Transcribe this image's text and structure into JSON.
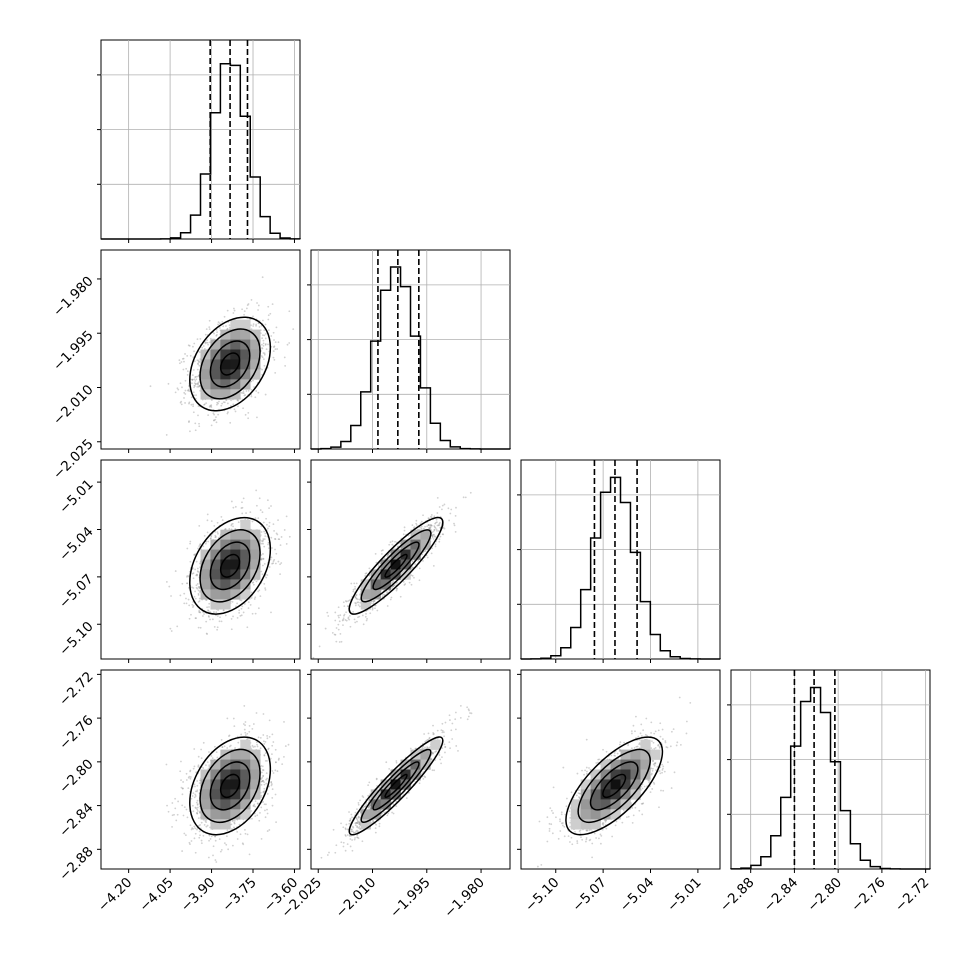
{
  "chart_data": {
    "type": "corner",
    "variables": [
      {
        "ticks": [
          "−4.20",
          "−4.05",
          "−3.90",
          "−3.75",
          "−3.60"
        ],
        "tick_values": [
          -4.2,
          -4.05,
          -3.9,
          -3.75,
          -3.6
        ],
        "range": [
          -4.3,
          -3.58
        ],
        "quantiles": [
          -3.905,
          -3.833,
          -3.77
        ],
        "mode": -3.833,
        "sd": 0.062
      },
      {
        "ticks": [
          "−2.025",
          "−2.010",
          "−1.995",
          "−1.980"
        ],
        "tick_values": [
          -2.025,
          -2.01,
          -1.995,
          -1.98
        ],
        "range": [
          -2.027,
          -1.972
        ],
        "quantiles": [
          -2.0085,
          -2.003,
          -1.9972
        ],
        "mode": -2.0035,
        "sd": 0.0055
      },
      {
        "ticks": [
          "−5.10",
          "−5.07",
          "−5.04",
          "−5.01"
        ],
        "tick_values": [
          -5.1,
          -5.07,
          -5.04,
          -5.01
        ],
        "range": [
          -5.122,
          -4.996
        ],
        "quantiles": [
          -5.0755,
          -5.0625,
          -5.0485
        ],
        "mode": -5.063,
        "sd": 0.013
      },
      {
        "ticks": [
          "−2.88",
          "−2.84",
          "−2.80",
          "−2.76",
          "−2.72"
        ],
        "tick_values": [
          -2.88,
          -2.84,
          -2.8,
          -2.76,
          -2.72
        ],
        "range": [
          -2.898,
          -2.716
        ],
        "quantiles": [
          -2.84,
          -2.822,
          -2.803
        ],
        "mode": -2.822,
        "sd": 0.019
      }
    ],
    "correlations": [
      [
        1,
        0.35,
        0.35,
        0.35
      ],
      [
        0.35,
        1,
        0.9,
        0.93
      ],
      [
        0.35,
        0.9,
        1,
        0.7
      ],
      [
        0.35,
        0.93,
        0.7,
        1
      ]
    ],
    "histogram_bins": 20,
    "grid": true
  }
}
